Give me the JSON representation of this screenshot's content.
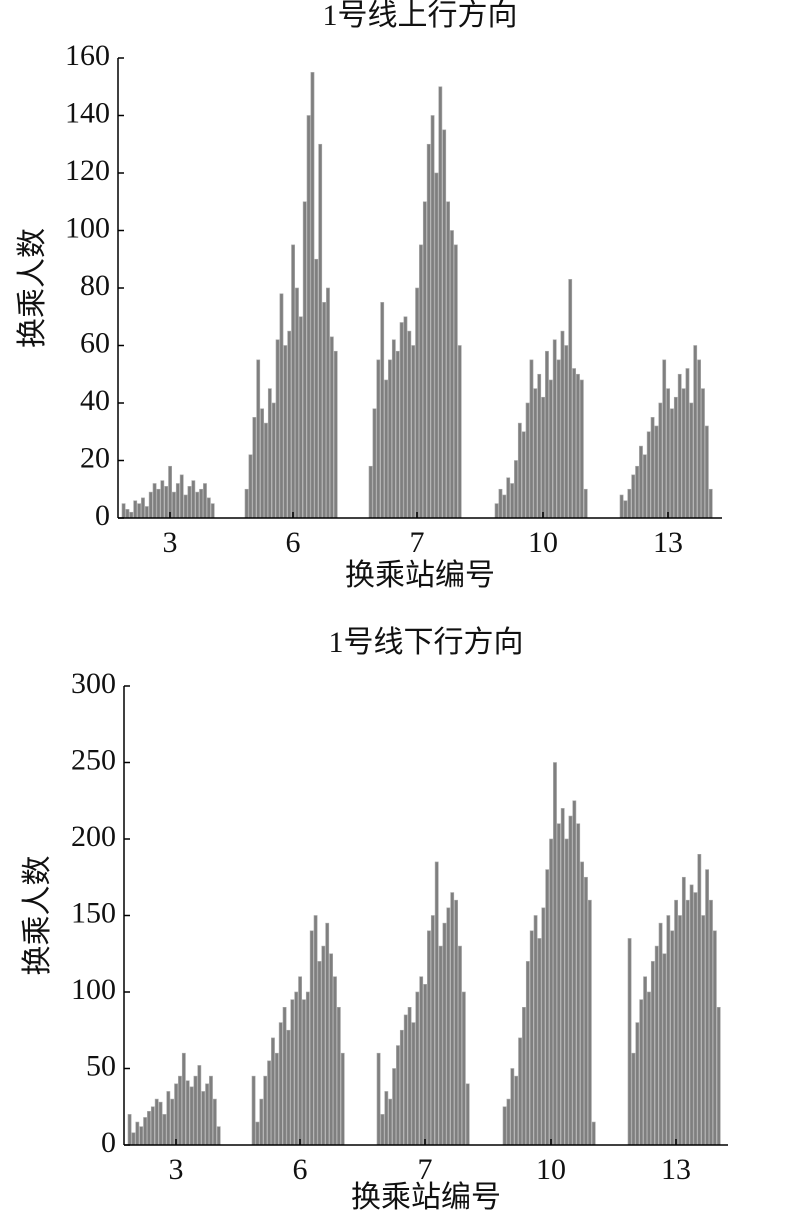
{
  "chart_data": [
    {
      "type": "grouped-bar",
      "title": "1号线上行方向",
      "xlabel": "换乘站编号",
      "ylabel": "换乘人数",
      "categories": [
        "3",
        "6",
        "7",
        "10",
        "13"
      ],
      "color": "#7f7f7f",
      "ylim": [
        0,
        160
      ],
      "yticks": [
        0,
        20,
        40,
        60,
        80,
        100,
        120,
        140,
        160
      ],
      "values": [
        [
          5,
          3,
          2,
          6,
          5,
          7,
          4,
          9,
          12,
          10,
          13,
          11,
          18,
          9,
          12,
          15,
          8,
          11,
          13,
          9,
          10,
          12,
          7,
          5
        ],
        [
          10,
          22,
          35,
          55,
          38,
          33,
          45,
          40,
          62,
          78,
          60,
          65,
          95,
          80,
          70,
          110,
          140,
          155,
          90,
          130,
          75,
          80,
          63,
          58
        ],
        [
          18,
          38,
          55,
          75,
          48,
          55,
          62,
          58,
          68,
          70,
          65,
          60,
          80,
          95,
          110,
          130,
          140,
          120,
          150,
          135,
          110,
          100,
          95,
          60
        ],
        [
          5,
          10,
          8,
          14,
          12,
          20,
          33,
          30,
          40,
          55,
          45,
          50,
          42,
          58,
          48,
          62,
          55,
          65,
          60,
          83,
          52,
          50,
          48,
          10
        ],
        [
          8,
          6,
          10,
          15,
          18,
          25,
          22,
          30,
          35,
          32,
          40,
          55,
          45,
          38,
          42,
          50,
          45,
          52,
          40,
          60,
          55,
          45,
          32,
          10
        ]
      ]
    },
    {
      "type": "grouped-bar",
      "title": "1号线下行方向",
      "xlabel": "换乘站编号",
      "ylabel": "换乘人数",
      "categories": [
        "3",
        "6",
        "7",
        "10",
        "13"
      ],
      "color": "#7f7f7f",
      "ylim": [
        0,
        300
      ],
      "yticks": [
        0,
        50,
        100,
        150,
        200,
        250,
        300
      ],
      "values": [
        [
          20,
          8,
          15,
          12,
          18,
          22,
          25,
          30,
          28,
          20,
          35,
          30,
          40,
          45,
          60,
          42,
          38,
          45,
          52,
          35,
          40,
          45,
          30,
          12
        ],
        [
          45,
          15,
          30,
          45,
          55,
          70,
          60,
          80,
          90,
          75,
          95,
          100,
          110,
          95,
          100,
          140,
          150,
          120,
          130,
          145,
          125,
          110,
          90,
          60
        ],
        [
          60,
          20,
          35,
          30,
          50,
          65,
          75,
          85,
          90,
          80,
          100,
          110,
          105,
          140,
          150,
          185,
          130,
          145,
          155,
          165,
          160,
          130,
          100,
          40
        ],
        [
          25,
          30,
          50,
          45,
          70,
          90,
          120,
          140,
          150,
          135,
          155,
          180,
          200,
          250,
          210,
          220,
          200,
          215,
          225,
          210,
          185,
          175,
          160,
          15
        ],
        [
          135,
          60,
          80,
          95,
          110,
          100,
          120,
          130,
          145,
          125,
          150,
          140,
          160,
          150,
          175,
          160,
          170,
          165,
          190,
          150,
          180,
          160,
          140,
          90
        ]
      ]
    }
  ]
}
